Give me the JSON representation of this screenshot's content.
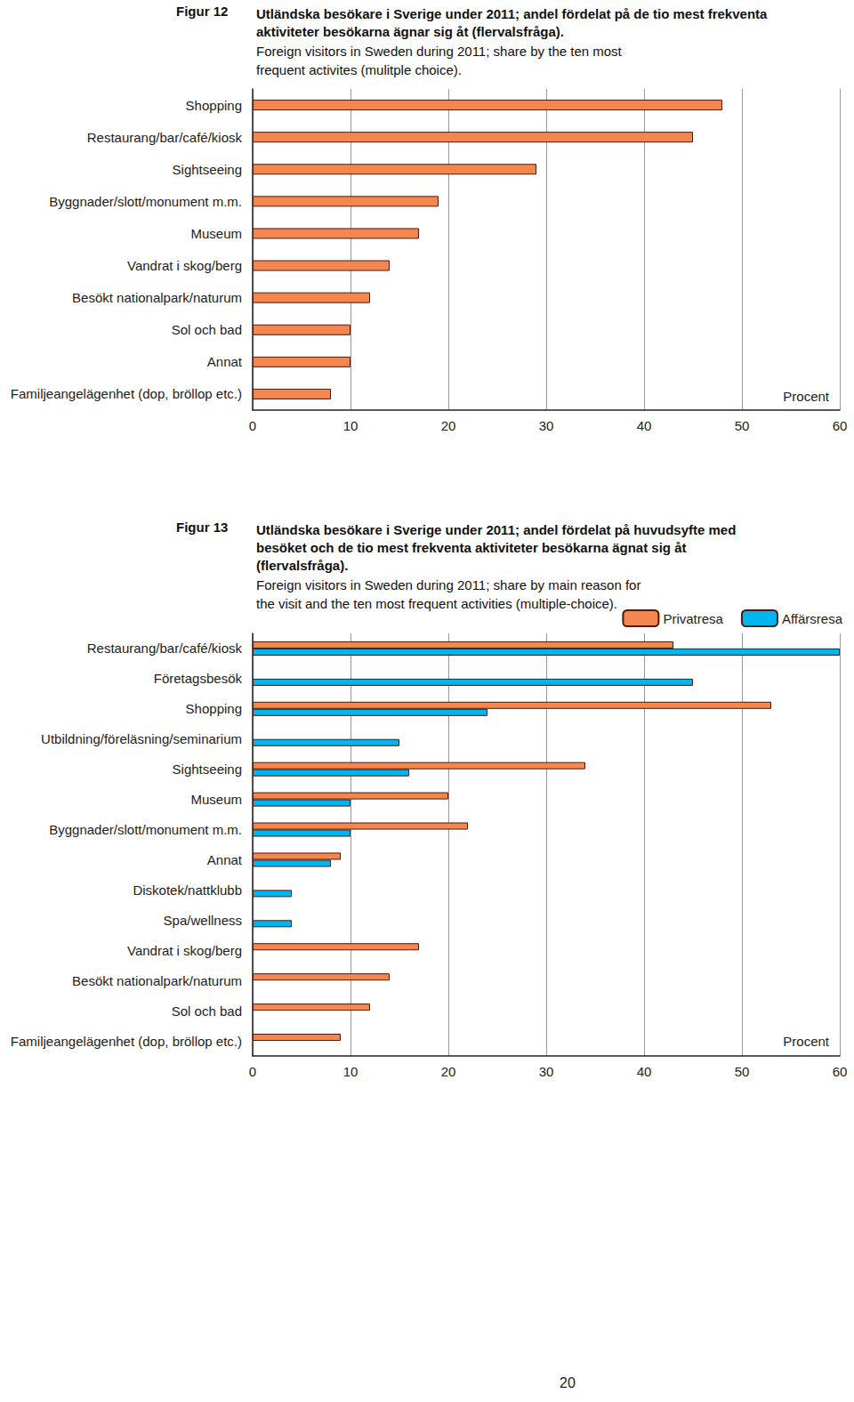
{
  "chart_data": [
    {
      "type": "bar",
      "orientation": "horizontal",
      "figure": "Figur 12",
      "title": "Utländska besökare i Sverige under 2011; andel fördelat på de tio mest frekventa aktiviteter besökarna ägnar sig åt (flervalsfråga).",
      "subtitle": "Foreign visitors in Sweden during 2011; share by the ten most frequent activites (mulitple choice).",
      "xlabel": "Procent",
      "categories": [
        "Shopping",
        "Restaurang/bar/café/kiosk",
        "Sightseeing",
        "Byggnader/slott/monument m.m.",
        "Museum",
        "Vandrat i skog/berg",
        "Besökt nationalpark/naturum",
        "Sol och bad",
        "Annat",
        "Familjeangelägenhet (dop, bröllop etc.)"
      ],
      "values": [
        48,
        45,
        29,
        19,
        17,
        14,
        12,
        10,
        10,
        8
      ],
      "color": "#f4874f",
      "xlim": [
        0,
        60
      ],
      "xticks": [
        0,
        10,
        20,
        30,
        40,
        50,
        60
      ],
      "grid": true
    },
    {
      "type": "bar",
      "orientation": "horizontal",
      "figure": "Figur 13",
      "title": "Utländska besökare i Sverige under 2011; andel fördelat på huvudsyfte med besöket och de tio mest frekventa aktiviteter besökarna ägnat sig åt (flervalsfråga).",
      "subtitle": "Foreign visitors in Sweden during 2011; share by main reason for the visit and the ten most frequent activities (multiple-choice).",
      "xlabel": "Procent",
      "categories": [
        "Restaurang/bar/café/kiosk",
        "Företagsbesök",
        "Shopping",
        "Utbildning/föreläsning/seminarium",
        "Sightseeing",
        "Museum",
        "Byggnader/slott/monument m.m.",
        "Annat",
        "Diskotek/nattklubb",
        "Spa/wellness",
        "Vandrat i skog/berg",
        "Besökt nationalpark/naturum",
        "Sol och bad",
        "Familjeangelägenhet (dop, bröllop etc.)"
      ],
      "series": [
        {
          "name": "Privatresa",
          "color": "#f4874f",
          "values": [
            43,
            null,
            53,
            null,
            34,
            20,
            22,
            9,
            null,
            null,
            17,
            14,
            12,
            9
          ]
        },
        {
          "name": "Affärsresa",
          "color": "#00b4ee",
          "values": [
            60,
            45,
            24,
            15,
            16,
            10,
            10,
            8,
            4,
            4,
            null,
            null,
            null,
            null
          ]
        }
      ],
      "legend": "top-right",
      "xlim": [
        0,
        60
      ],
      "xticks": [
        0,
        10,
        20,
        30,
        40,
        50,
        60
      ],
      "grid": true
    }
  ],
  "page_number": "20"
}
